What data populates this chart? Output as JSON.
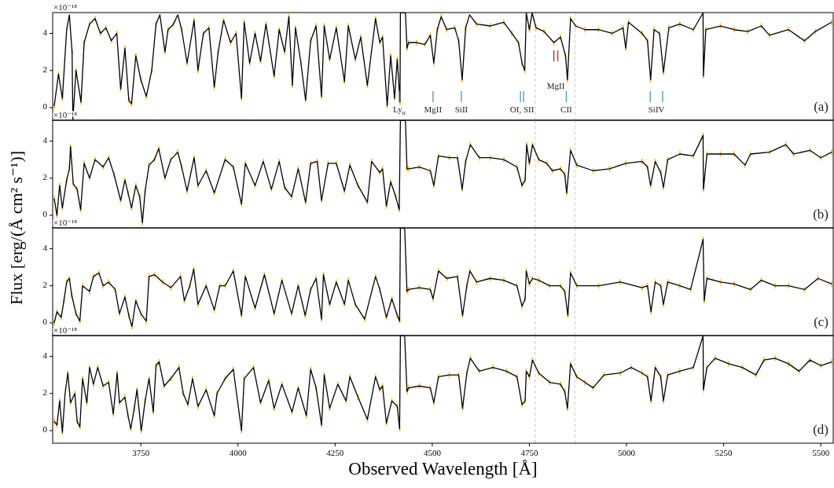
{
  "chart_data": [
    {
      "type": "line",
      "ylabel": "Flux [erg/(Å cm² s⁻¹)]",
      "xlim": [
        3523,
        5532
      ],
      "ylim": [
        -0.68,
        5.12
      ],
      "yticks": [
        0,
        2,
        4
      ],
      "tick_labels": "y",
      "x": [
        3527,
        3538,
        3548,
        3559,
        3566,
        3573,
        3575,
        3583,
        3596,
        3604,
        3618,
        3632,
        3646,
        3660,
        3674,
        3688,
        3698,
        3709,
        3719,
        3726,
        3737,
        3750,
        3764,
        3778,
        3789,
        3799,
        3812,
        3820,
        3834,
        3845,
        3855,
        3869,
        3887,
        3897,
        3911,
        3925,
        3939,
        3949,
        3963,
        3981,
        3995,
        4009,
        4016,
        4030,
        4044,
        4058,
        4072,
        4093,
        4106,
        4120,
        4131,
        4140,
        4148,
        4162,
        4174,
        4187,
        4201,
        4215,
        4222,
        4236,
        4253,
        4274,
        4284,
        4302,
        4316,
        4333,
        4354,
        4365,
        4372,
        4384,
        4393,
        4403,
        4410,
        4417,
        4418,
        4431,
        4435,
        4439,
        4460,
        4481,
        4495,
        4504,
        4513,
        4523,
        4537,
        4558,
        4568,
        4577,
        4586,
        4596,
        4614,
        4649,
        4684,
        4705,
        4722,
        4731,
        4738,
        4742,
        4750,
        4757,
        4767,
        4788,
        4813,
        4830,
        4843,
        4848,
        4856,
        4869,
        4893,
        4928,
        4963,
        4991,
        4998,
        5005,
        5040,
        5054,
        5062,
        5071,
        5085,
        5095,
        5109,
        5137,
        5172,
        5197,
        5198,
        5204,
        5242,
        5277,
        5312,
        5347,
        5368,
        5417,
        5458,
        5486,
        5528
      ],
      "series": [
        {
          "color": "#000000",
          "values": [
            0.1,
            1.8,
            0.5,
            4.2,
            5.0,
            3.0,
            -0.65,
            2.0,
            0.3,
            3.5,
            4.5,
            4.8,
            4.0,
            4.3,
            3.6,
            4.0,
            1.0,
            3.2,
            0.4,
            0.2,
            2.8,
            1.5,
            0.6,
            2.0,
            4.5,
            5.0,
            3.0,
            4.2,
            4.5,
            5.0,
            4.2,
            2.4,
            4.7,
            2.0,
            4.0,
            4.3,
            1.1,
            3.0,
            4.7,
            3.5,
            4.0,
            0.5,
            4.6,
            2.4,
            4.0,
            2.5,
            4.5,
            1.7,
            4.2,
            3.0,
            4.9,
            1.2,
            4.3,
            2.4,
            0.4,
            3.6,
            4.4,
            0.6,
            4.4,
            2.6,
            4.3,
            1.4,
            4.4,
            2.6,
            3.8,
            1.2,
            4.8,
            3.5,
            3.8,
            0.1,
            2.8,
            0.5,
            2.6,
            0.3,
            5.1,
            5.1,
            3.2,
            3.5,
            3.5,
            3.4,
            3.9,
            2.4,
            4.2,
            4.9,
            4.2,
            4.3,
            3.6,
            1.5,
            4.3,
            5.0,
            4.5,
            4.4,
            4.6,
            4.0,
            3.5,
            2.4,
            2.0,
            5.1,
            4.2,
            5.1,
            4.3,
            4.1,
            3.5,
            3.8,
            2.8,
            1.5,
            4.8,
            4.4,
            4.2,
            4.2,
            4.0,
            4.3,
            3.2,
            4.6,
            4.0,
            3.6,
            1.5,
            4.2,
            4.0,
            1.9,
            4.3,
            4.5,
            4.2,
            5.1,
            1.7,
            4.2,
            4.4,
            4.2,
            4.1,
            4.4,
            3.9,
            4.2,
            3.6,
            4.1,
            4.6
          ],
          "errors": [
            0.15,
            0.15,
            0.15,
            null,
            null,
            0.15,
            null,
            0.15,
            0.15,
            0.15,
            0.15,
            0.15,
            0.15,
            0.15,
            0.15,
            0.15,
            0.15,
            0.15,
            0.15,
            0.15,
            0.15,
            0.15,
            0.15,
            0.15,
            0.15,
            null,
            0.15,
            0.15,
            0.15,
            null,
            0.15,
            0.15,
            0.15,
            0.15,
            0.15,
            0.15,
            0.15,
            0.15,
            0.15,
            0.15,
            0.15,
            0.15,
            0.15,
            0.15,
            0.15,
            0.15,
            0.15,
            0.15,
            0.15,
            0.15,
            0.15,
            0.15,
            0.15,
            0.15,
            0.15,
            0.15,
            0.15,
            0.15,
            0.15,
            0.15,
            0.15,
            0.15,
            0.15,
            0.15,
            0.15,
            0.15,
            0.15,
            0.15,
            0.15,
            0.15,
            0.15,
            0.15,
            0.15,
            0.15,
            null,
            null,
            0.15,
            0.15,
            0.15,
            0.15,
            0.15,
            0.15,
            0.15,
            0.15,
            0.15,
            0.15,
            0.15,
            0.15,
            0.15,
            null,
            0.15,
            0.15,
            0.15,
            0.15,
            0.15,
            0.15,
            0.15,
            null,
            0.15,
            null,
            0.15,
            0.15,
            0.15,
            0.15,
            0.15,
            0.15,
            0.15,
            0.15,
            0.15,
            0.15,
            0.15,
            0.15,
            0.15,
            0.15,
            0.15,
            0.15,
            0.15,
            0.15,
            0.15,
            0.15,
            0.15,
            0.15,
            0.15,
            null,
            0.15,
            0.15,
            0.15,
            0.15,
            0.15,
            0.15,
            0.15,
            0.15,
            0.15,
            0.15,
            0.15
          ]
        }
      ],
      "ref_lines": [
        {
          "axis": "x",
          "value": 4765,
          "color": "#c8c8c8",
          "line_style": "dashed"
        },
        {
          "axis": "x",
          "value": 4867,
          "color": "#c8c8c8",
          "line_style": "dashed"
        },
        {
          "axis": "x",
          "value": 4415,
          "color": "#4a94d0",
          "line_style": "solid",
          "label": "Ly$_{α}$"
        },
        {
          "axis": "x",
          "value": 4502,
          "color": "#4a94d0",
          "line_style": "solid",
          "label": "MgII"
        },
        {
          "axis": "x",
          "value": 4575,
          "color": "#4a94d0",
          "line_style": "solid",
          "label": "SiII"
        },
        {
          "axis": "x",
          "value": 4727,
          "color": "#4a94d0",
          "line_style": "solid",
          "label": "OI, SII"
        },
        {
          "axis": "x",
          "value": 4735,
          "color": "#4a94d0",
          "line_style": "solid"
        },
        {
          "axis": "x",
          "value": 4845,
          "color": "#4a94d0",
          "line_style": "solid",
          "label": "CII"
        },
        {
          "axis": "x",
          "value": 5061,
          "color": "#4a94d0",
          "line_style": "solid",
          "label": "SiIV"
        },
        {
          "axis": "x",
          "value": 5093,
          "color": "#4a94d0",
          "line_style": "solid"
        },
        {
          "axis": "x",
          "value": 4813,
          "color": "#e41a1c",
          "line_style": "solid",
          "label": "MgII"
        },
        {
          "axis": "x",
          "value": 4823,
          "color": "#e41a1c",
          "line_style": "solid"
        }
      ],
      "annotations": [
        "×10⁻¹⁸",
        "(a)"
      ]
    },
    {
      "type": "line",
      "xlim": [
        3523,
        5532
      ],
      "ylim": [
        -0.68,
        5.12
      ],
      "yticks": [
        0,
        2,
        4
      ],
      "tick_labels": "y",
      "x": [
        3527,
        3534,
        3541,
        3548,
        3559,
        3566,
        3569,
        3576,
        3586,
        3595,
        3604,
        3618,
        3632,
        3653,
        3667,
        3681,
        3698,
        3709,
        3717,
        3726,
        3737,
        3747,
        3754,
        3761,
        3771,
        3785,
        3796,
        3812,
        3827,
        3845,
        3855,
        3869,
        3887,
        3897,
        3918,
        3939,
        3967,
        3988,
        4009,
        4019,
        4044,
        4065,
        4086,
        4106,
        4120,
        4138,
        4155,
        4174,
        4187,
        4204,
        4215,
        4232,
        4253,
        4274,
        4288,
        4309,
        4333,
        4344,
        4365,
        4372,
        4382,
        4393,
        4406,
        4415,
        4418,
        4431,
        4435,
        4439,
        4467,
        4495,
        4504,
        4516,
        4544,
        4565,
        4577,
        4586,
        4598,
        4621,
        4649,
        4684,
        4718,
        4731,
        4739,
        4743,
        4750,
        4758,
        4774,
        4795,
        4809,
        4830,
        4841,
        4846,
        4856,
        4872,
        4914,
        4956,
        4998,
        5040,
        5054,
        5062,
        5074,
        5088,
        5095,
        5106,
        5137,
        5172,
        5197,
        5198,
        5207,
        5242,
        5277,
        5305,
        5319,
        5368,
        5410,
        5430,
        5472,
        5500,
        5528
      ],
      "series": [
        {
          "color": "#000000",
          "values": [
            0.9,
            0.0,
            1.6,
            0.4,
            1.9,
            2.5,
            3.7,
            1.7,
            1.4,
            0.3,
            2.8,
            2.0,
            3.0,
            2.6,
            3.1,
            2.2,
            0.8,
            1.9,
            1.2,
            0.4,
            1.6,
            1.0,
            -0.4,
            1.3,
            2.7,
            3.0,
            3.6,
            2.0,
            3.0,
            3.4,
            2.6,
            1.3,
            3.1,
            1.6,
            2.4,
            1.2,
            3.0,
            2.6,
            0.6,
            2.8,
            1.6,
            2.9,
            1.4,
            2.9,
            1.5,
            1.0,
            2.5,
            0.7,
            2.8,
            2.9,
            0.8,
            2.8,
            2.8,
            1.3,
            2.7,
            1.6,
            0.7,
            2.9,
            2.3,
            2.5,
            0.5,
            1.8,
            1.0,
            0.3,
            5.1,
            5.1,
            2.5,
            2.5,
            2.6,
            2.4,
            1.6,
            3.2,
            3.1,
            3.1,
            1.4,
            2.9,
            3.8,
            3.1,
            3.1,
            3.0,
            2.6,
            1.6,
            1.9,
            3.8,
            2.8,
            3.8,
            3.0,
            2.8,
            2.4,
            2.5,
            2.2,
            1.2,
            3.5,
            2.7,
            2.4,
            2.5,
            2.8,
            2.9,
            2.6,
            1.6,
            2.9,
            2.3,
            1.5,
            3.0,
            3.3,
            3.2,
            4.3,
            1.4,
            3.3,
            3.3,
            3.3,
            2.7,
            3.3,
            3.4,
            3.8,
            3.3,
            3.5,
            3.1,
            3.4
          ],
          "errors": [
            0.15,
            0.15,
            0.15,
            0.15,
            0.15,
            0.15,
            0.15,
            0.15,
            0.15,
            0.15,
            0.15,
            0.15,
            0.15,
            0.15,
            0.15,
            0.15,
            0.15,
            0.15,
            0.15,
            0.15,
            0.15,
            0.15,
            0.15,
            0.15,
            0.15,
            0.15,
            0.15,
            0.15,
            0.15,
            0.15,
            0.15,
            0.15,
            0.15,
            0.15,
            0.15,
            0.15,
            0.15,
            0.15,
            0.15,
            0.15,
            0.15,
            0.15,
            0.15,
            0.15,
            0.15,
            0.15,
            0.15,
            0.15,
            0.15,
            0.15,
            0.15,
            0.15,
            0.15,
            0.15,
            0.15,
            0.15,
            0.15,
            0.15,
            0.15,
            0.15,
            0.15,
            0.15,
            0.15,
            0.15,
            null,
            null,
            0.15,
            0.15,
            0.15,
            0.15,
            0.15,
            0.15,
            0.15,
            0.15,
            0.15,
            0.15,
            0.15,
            0.15,
            0.15,
            0.15,
            0.15,
            0.15,
            0.15,
            0.15,
            0.15,
            0.15,
            0.15,
            0.15,
            0.15,
            0.15,
            0.15,
            0.15,
            0.15,
            0.15,
            0.15,
            0.15,
            0.15,
            0.15,
            0.15,
            0.15,
            0.15,
            0.15,
            0.15,
            0.15,
            0.15,
            0.15,
            0.15,
            0.15,
            0.15,
            0.15,
            0.15,
            0.15,
            0.15,
            0.15,
            0.15,
            0.15,
            0.15,
            0.15,
            0.15
          ]
        }
      ],
      "ref_lines": [
        {
          "axis": "x",
          "value": 4765,
          "color": "#c8c8c8",
          "line_style": "dashed"
        },
        {
          "axis": "x",
          "value": 4867,
          "color": "#c8c8c8",
          "line_style": "dashed"
        }
      ],
      "annotations": [
        "×10⁻¹⁸",
        "(b)"
      ]
    },
    {
      "type": "line",
      "xlim": [
        3523,
        5532
      ],
      "ylim": [
        -0.68,
        5.12
      ],
      "yticks": [
        0,
        2,
        4
      ],
      "tick_labels": "y",
      "x": [
        3527,
        3534,
        3545,
        3552,
        3559,
        3566,
        3572,
        3583,
        3593,
        3600,
        3618,
        3628,
        3642,
        3653,
        3667,
        3684,
        3695,
        3709,
        3719,
        3727,
        3737,
        3750,
        3764,
        3771,
        3785,
        3806,
        3827,
        3852,
        3862,
        3876,
        3886,
        3897,
        3918,
        3939,
        3953,
        3967,
        3988,
        4009,
        4019,
        4044,
        4068,
        4093,
        4113,
        4138,
        4155,
        4173,
        4187,
        4201,
        4215,
        4220,
        4236,
        4253,
        4274,
        4284,
        4302,
        4326,
        4354,
        4365,
        4382,
        4396,
        4410,
        4416,
        4418,
        4429,
        4435,
        4439,
        4467,
        4495,
        4502,
        4516,
        4537,
        4565,
        4578,
        4589,
        4597,
        4614,
        4649,
        4684,
        4718,
        4731,
        4739,
        4742,
        4750,
        4758,
        4774,
        4802,
        4830,
        4841,
        4849,
        4856,
        4872,
        4928,
        4984,
        5040,
        5054,
        5063,
        5074,
        5088,
        5095,
        5106,
        5137,
        5165,
        5197,
        5200,
        5207,
        5242,
        5277,
        5319,
        5347,
        5382,
        5417,
        5458,
        5493,
        5528
      ],
      "series": [
        {
          "color": "#000000",
          "values": [
            0.0,
            0.6,
            0.3,
            1.2,
            2.2,
            2.4,
            1.5,
            0.5,
            0.1,
            2.0,
            1.7,
            2.5,
            2.7,
            2.0,
            2.2,
            1.8,
            0.5,
            1.4,
            0.4,
            -0.2,
            1.2,
            0.5,
            0.1,
            2.5,
            2.6,
            2.2,
            1.9,
            2.5,
            1.2,
            2.0,
            2.9,
            1.0,
            2.0,
            0.7,
            2.0,
            2.0,
            2.8,
            0.4,
            2.5,
            0.8,
            2.6,
            0.5,
            2.3,
            0.5,
            2.0,
            0.4,
            1.8,
            2.4,
            0.2,
            2.6,
            1.0,
            2.2,
            1.0,
            2.3,
            1.0,
            0.2,
            2.5,
            1.8,
            0.3,
            1.3,
            0.4,
            0.1,
            5.1,
            5.1,
            1.7,
            1.8,
            1.9,
            1.8,
            1.3,
            2.8,
            2.4,
            2.5,
            0.4,
            2.0,
            2.8,
            2.2,
            2.4,
            2.3,
            2.0,
            0.9,
            1.3,
            2.8,
            2.1,
            2.4,
            2.3,
            2.0,
            2.0,
            1.7,
            0.4,
            2.7,
            2.0,
            2.0,
            2.2,
            1.9,
            2.0,
            0.6,
            2.2,
            2.0,
            1.0,
            2.2,
            2.0,
            1.8,
            4.5,
            1.2,
            2.4,
            2.2,
            2.1,
            1.8,
            2.3,
            2.0,
            2.0,
            1.8,
            2.4,
            2.1
          ],
          "errors": [
            0.15,
            0.15,
            0.15,
            0.15,
            0.15,
            0.15,
            0.15,
            0.15,
            0.15,
            0.15,
            0.15,
            0.15,
            0.15,
            0.15,
            0.15,
            0.15,
            0.15,
            0.15,
            0.15,
            0.15,
            0.15,
            0.15,
            0.15,
            0.15,
            0.15,
            0.15,
            0.15,
            0.15,
            0.15,
            0.15,
            0.15,
            0.15,
            0.15,
            0.15,
            0.15,
            0.15,
            0.15,
            0.15,
            0.15,
            0.15,
            0.15,
            0.15,
            0.15,
            0.15,
            0.15,
            0.15,
            0.15,
            0.15,
            0.15,
            0.15,
            0.15,
            0.15,
            0.15,
            0.15,
            0.15,
            0.15,
            0.15,
            0.15,
            0.15,
            0.15,
            0.15,
            0.15,
            null,
            null,
            0.15,
            0.15,
            0.15,
            0.15,
            0.15,
            0.15,
            0.15,
            0.15,
            0.15,
            0.15,
            0.15,
            0.15,
            0.15,
            0.15,
            0.15,
            0.15,
            0.15,
            0.15,
            0.15,
            0.15,
            0.15,
            0.15,
            0.15,
            0.15,
            0.15,
            0.15,
            0.15,
            0.15,
            0.15,
            0.15,
            0.15,
            0.15,
            0.15,
            0.15,
            0.15,
            0.15,
            0.15,
            0.15,
            0.15,
            0.15,
            0.15,
            0.15,
            0.15,
            0.15,
            0.15,
            0.15,
            0.15,
            0.15,
            0.15,
            0.15
          ]
        }
      ],
      "ref_lines": [
        {
          "axis": "x",
          "value": 4765,
          "color": "#c8c8c8",
          "line_style": "dashed"
        },
        {
          "axis": "x",
          "value": 4867,
          "color": "#c8c8c8",
          "line_style": "dashed"
        }
      ],
      "annotations": [
        "×10⁻¹⁸",
        "(c)"
      ]
    },
    {
      "type": "line",
      "xlabel": "Observed Wavelength [Å]",
      "xlim": [
        3523,
        5532
      ],
      "ylim": [
        -0.68,
        5.12
      ],
      "yticks": [
        0,
        2,
        4
      ],
      "xticks": [
        3750,
        4000,
        4250,
        4500,
        4750,
        5000,
        5250,
        5500
      ],
      "x": [
        3527,
        3534,
        3541,
        3548,
        3555,
        3562,
        3569,
        3580,
        3586,
        3593,
        3600,
        3611,
        3618,
        3628,
        3639,
        3653,
        3667,
        3679,
        3689,
        3695,
        3709,
        3717,
        3724,
        3733,
        3740,
        3751,
        3761,
        3771,
        3782,
        3789,
        3797,
        3810,
        3827,
        3848,
        3859,
        3871,
        3883,
        3897,
        3918,
        3939,
        3946,
        3967,
        3988,
        4009,
        4016,
        4040,
        4058,
        4079,
        4093,
        4113,
        4139,
        4155,
        4176,
        4187,
        4201,
        4215,
        4222,
        4236,
        4257,
        4278,
        4288,
        4309,
        4333,
        4354,
        4365,
        4372,
        4382,
        4396,
        4410,
        4416,
        4418,
        4429,
        4435,
        4439,
        4467,
        4495,
        4504,
        4516,
        4544,
        4568,
        4578,
        4589,
        4598,
        4621,
        4656,
        4691,
        4718,
        4731,
        4739,
        4742,
        4750,
        4758,
        4774,
        4802,
        4830,
        4841,
        4848,
        4856,
        4872,
        4893,
        4914,
        4942,
        4984,
        5012,
        5040,
        5054,
        5063,
        5074,
        5088,
        5095,
        5106,
        5137,
        5172,
        5197,
        5198,
        5207,
        5228,
        5263,
        5298,
        5333,
        5354,
        5382,
        5417,
        5444,
        5472,
        5500,
        5528
      ],
      "series": [
        {
          "color": "#000000",
          "values": [
            0.5,
            0.3,
            1.6,
            -0.1,
            2.0,
            3.1,
            1.5,
            2.0,
            0.5,
            0.2,
            2.8,
            1.5,
            3.4,
            2.5,
            3.4,
            2.4,
            2.6,
            0.9,
            3.1,
            1.5,
            1.8,
            0.8,
            0.1,
            1.2,
            2.2,
            0.0,
            1.6,
            2.8,
            1.0,
            3.5,
            3.7,
            2.4,
            2.8,
            3.4,
            2.0,
            1.4,
            2.8,
            1.3,
            2.2,
            0.8,
            2.0,
            2.8,
            3.3,
            0.0,
            2.8,
            3.4,
            1.5,
            2.7,
            1.2,
            2.5,
            1.0,
            2.3,
            0.8,
            3.3,
            2.3,
            0.3,
            3.0,
            1.2,
            2.5,
            1.6,
            2.9,
            1.8,
            0.6,
            2.9,
            2.2,
            2.4,
            0.4,
            1.6,
            1.3,
            0.1,
            5.1,
            5.1,
            2.1,
            2.3,
            2.4,
            2.3,
            1.5,
            2.9,
            3.0,
            3.0,
            1.2,
            3.1,
            3.9,
            3.2,
            3.4,
            3.2,
            2.9,
            1.4,
            1.6,
            3.2,
            2.9,
            3.8,
            3.1,
            2.6,
            2.5,
            2.1,
            1.2,
            3.6,
            2.9,
            2.6,
            2.3,
            3.0,
            3.1,
            3.4,
            3.1,
            2.9,
            1.6,
            3.4,
            2.9,
            1.6,
            3.0,
            3.2,
            3.4,
            5.1,
            2.2,
            3.4,
            3.9,
            3.6,
            3.4,
            3.0,
            3.8,
            3.9,
            3.6,
            3.2,
            3.8,
            3.5,
            3.7
          ],
          "errors": [
            0.15,
            0.15,
            0.15,
            0.15,
            null,
            0.15,
            0.15,
            0.15,
            0.15,
            0.15,
            0.15,
            0.15,
            0.15,
            0.15,
            0.15,
            0.15,
            0.15,
            0.15,
            0.15,
            0.15,
            0.15,
            0.15,
            0.15,
            0.15,
            0.15,
            0.15,
            0.15,
            0.15,
            0.15,
            0.15,
            0.15,
            0.15,
            0.15,
            0.15,
            0.15,
            0.15,
            0.15,
            0.15,
            0.15,
            0.15,
            0.15,
            0.15,
            0.15,
            0.15,
            0.15,
            0.15,
            0.15,
            0.15,
            0.15,
            0.15,
            0.15,
            0.15,
            0.15,
            0.15,
            0.15,
            0.15,
            0.15,
            0.15,
            0.15,
            0.15,
            0.15,
            0.15,
            0.15,
            0.15,
            0.15,
            0.15,
            0.15,
            0.15,
            0.15,
            0.15,
            null,
            null,
            0.15,
            0.15,
            0.15,
            0.15,
            0.15,
            0.15,
            0.15,
            0.15,
            0.15,
            0.15,
            0.15,
            0.15,
            0.15,
            0.15,
            0.15,
            0.15,
            0.15,
            0.15,
            0.15,
            0.15,
            0.15,
            0.15,
            0.15,
            0.15,
            0.15,
            0.15,
            0.15,
            0.15,
            0.15,
            0.15,
            0.15,
            0.15,
            0.15,
            0.15,
            0.15,
            0.15,
            0.15,
            0.15,
            0.15,
            0.15,
            0.15,
            null,
            0.15,
            0.15,
            0.15,
            0.15,
            0.15,
            0.15,
            0.15,
            0.15,
            0.15,
            0.15,
            0.15,
            0.15,
            0.15
          ]
        }
      ],
      "ref_lines": [
        {
          "axis": "x",
          "value": 4765,
          "color": "#c8c8c8",
          "line_style": "dashed"
        },
        {
          "axis": "x",
          "value": 4867,
          "color": "#c8c8c8",
          "line_style": "dashed"
        }
      ],
      "annotations": [
        "×10⁻¹⁸",
        "(d)"
      ]
    }
  ]
}
